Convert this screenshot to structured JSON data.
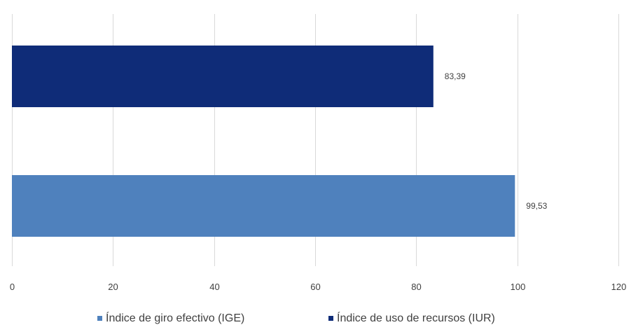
{
  "chart_data": {
    "type": "bar",
    "orientation": "horizontal",
    "xlim": [
      0,
      120
    ],
    "xticks": [
      0,
      20,
      40,
      60,
      80,
      100,
      120
    ],
    "grid": true,
    "legend_position": "bottom",
    "series": [
      {
        "name": "Índice de giro efectivo (IGE)",
        "value": 99.53,
        "label": "99,53",
        "color": "#4f81bd"
      },
      {
        "name": "Índice de uso de recursos (IUR)",
        "value": 83.39,
        "label": "83,39",
        "color": "#0f2c78"
      }
    ]
  }
}
